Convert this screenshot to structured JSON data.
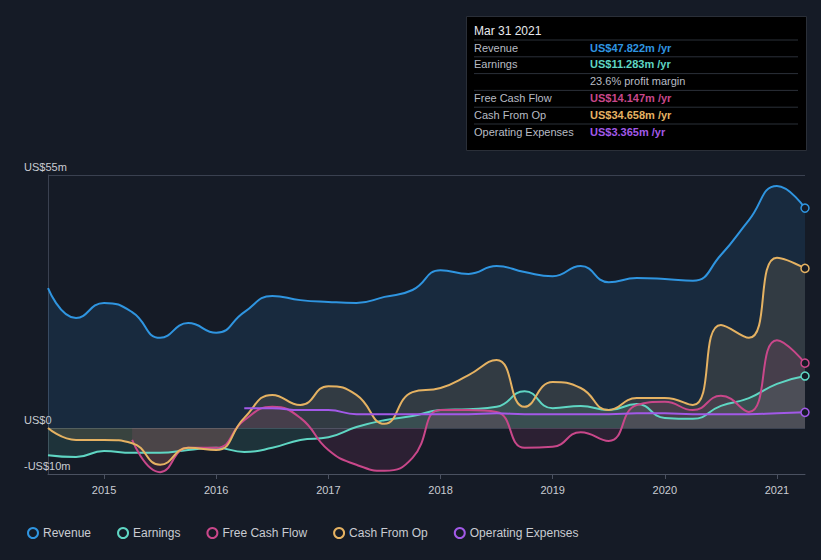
{
  "chart_data": {
    "type": "line",
    "x": [
      2014.5,
      2014.75,
      2015.0,
      2015.25,
      2015.5,
      2015.75,
      2016.0,
      2016.25,
      2016.5,
      2016.75,
      2017.0,
      2017.25,
      2017.5,
      2017.75,
      2018.0,
      2018.25,
      2018.5,
      2018.75,
      2019.0,
      2019.25,
      2019.5,
      2019.75,
      2020.0,
      2020.25,
      2020.5,
      2020.75,
      2021.0,
      2021.25
    ],
    "series": [
      {
        "name": "Revenue",
        "color": "#2f95e0",
        "type": "area",
        "values": [
          30.4,
          23.9,
          27.2,
          25.2,
          19.6,
          22.8,
          20.7,
          25.2,
          28.7,
          27.8,
          27.4,
          27.2,
          28.5,
          30.0,
          34.3,
          33.5,
          35.2,
          33.9,
          33.0,
          35.2,
          31.7,
          32.6,
          32.4,
          32.0,
          37.6,
          45.2,
          52.6,
          47.8
        ]
      },
      {
        "name": "Earnings",
        "color": "#5fd6c3",
        "type": "area",
        "values": [
          -5.9,
          -6.3,
          -5.0,
          -5.4,
          -5.4,
          -4.8,
          -4.3,
          -5.2,
          -4.3,
          -2.6,
          -2.0,
          0.2,
          1.7,
          2.6,
          3.9,
          4.1,
          4.6,
          8.0,
          4.3,
          4.8,
          3.9,
          5.2,
          2.2,
          2.0,
          4.8,
          6.5,
          9.6,
          11.3
        ]
      },
      {
        "name": "Free Cash Flow",
        "color": "#c9478a",
        "type": "area",
        "values": [
          null,
          null,
          null,
          -2.6,
          -9.6,
          -4.3,
          -4.3,
          1.7,
          4.6,
          2.2,
          -4.8,
          -8.0,
          -9.3,
          -6.5,
          3.9,
          3.9,
          3.5,
          -4.3,
          -4.1,
          -0.9,
          -2.8,
          5.0,
          5.7,
          3.9,
          7.0,
          3.5,
          19.1,
          14.1
        ]
      },
      {
        "name": "Cash From Op",
        "color": "#e5b262",
        "type": "area",
        "values": [
          0.0,
          -2.6,
          -2.6,
          -3.3,
          -8.0,
          -4.3,
          -4.8,
          2.2,
          7.2,
          5.0,
          9.1,
          7.2,
          0.9,
          7.8,
          8.7,
          11.5,
          14.8,
          4.6,
          10.0,
          8.7,
          3.9,
          6.5,
          6.5,
          5.0,
          22.4,
          19.6,
          37.0,
          34.7
        ]
      },
      {
        "name": "Operating Expenses",
        "color": "#a259e8",
        "type": "line",
        "values": [
          null,
          null,
          null,
          null,
          null,
          null,
          null,
          4.3,
          4.3,
          3.9,
          3.9,
          3.0,
          3.0,
          3.0,
          3.0,
          3.0,
          3.2,
          3.0,
          3.0,
          3.0,
          3.0,
          3.2,
          3.2,
          3.0,
          3.0,
          3.0,
          3.2,
          3.4
        ]
      }
    ],
    "xlim": [
      2014.5,
      2021.25
    ],
    "xticks": [
      2015,
      2016,
      2017,
      2018,
      2019,
      2020,
      2021
    ],
    "ylim": [
      -10,
      55
    ],
    "yticks": [
      {
        "value": -10,
        "label": "-US$10m"
      },
      {
        "value": 0,
        "label": "US$0"
      },
      {
        "value": 55,
        "label": "US$55m"
      }
    ],
    "grid": true,
    "legend": "bottom-left",
    "annotation": {
      "title": "Mar 31 2021",
      "rows": [
        {
          "label": "Revenue",
          "value": "US$47.822m /yr"
        },
        {
          "label": "Earnings",
          "value": "US$11.283m /yr"
        },
        {
          "value": "23.6% profit margin"
        },
        {
          "label": "Free Cash Flow",
          "value": "US$14.147m /yr"
        },
        {
          "label": "Cash From Op",
          "value": "US$34.658m /yr"
        },
        {
          "label": "Operating Expenses",
          "value": "US$3.365m /yr"
        }
      ]
    }
  }
}
